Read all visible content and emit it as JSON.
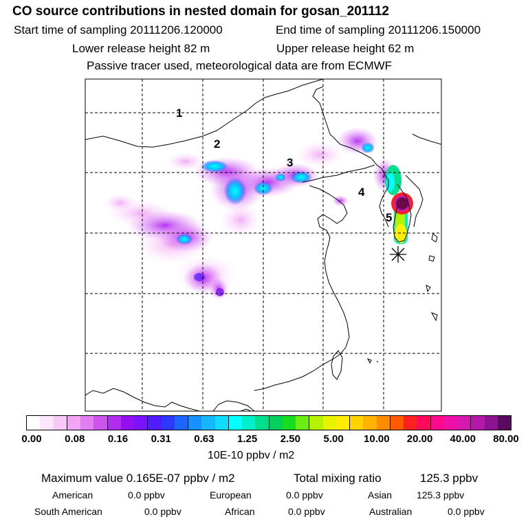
{
  "header": {
    "title": "CO  source contributions in nested domain for gosan_201112",
    "start_label": "Start time of sampling 20111206.120000",
    "end_label": "End time of sampling 20111206.150000",
    "lower_height": "Lower release height   82 m",
    "upper_height": "Upper release height   62 m",
    "tracer_note": "Passive tracer used, meteorological data are from ECMWF"
  },
  "map": {
    "region_labels": [
      "5",
      "4",
      "3",
      "2",
      "1"
    ],
    "receptor_marker": "receptor-star",
    "max_marker_color": "#6a0a4a"
  },
  "colorbar": {
    "ticks": [
      "0.00",
      "0.08",
      "0.16",
      "0.31",
      "0.63",
      "1.25",
      "2.50",
      "5.00",
      "10.00",
      "20.00",
      "40.00",
      "80.00"
    ],
    "unit": "10E-10 ppbv / m2",
    "colors": [
      "#ffffff",
      "#fde6fd",
      "#f8c8f8",
      "#f0a6f4",
      "#e07ef0",
      "#cc55ee",
      "#b22cf2",
      "#9410f0",
      "#7a14ff",
      "#4e1cff",
      "#2c3aff",
      "#1d66ff",
      "#1592ff",
      "#13b8ff",
      "#0fdcff",
      "#00ffff",
      "#00f0cc",
      "#00e08c",
      "#00d05a",
      "#18dc20",
      "#6aee10",
      "#b4f200",
      "#e6f400",
      "#ffee00",
      "#ffd200",
      "#ffb200",
      "#ff8c00",
      "#ff5a00",
      "#ff2020",
      "#ff0a5a",
      "#ff0a8c",
      "#f010a8",
      "#d418b0",
      "#b418a8",
      "#8c1490",
      "#5c0a60"
    ]
  },
  "summary": {
    "max_label": "Maximum value  0.165E-07 ppbv / m2",
    "total_label": "Total mixing ratio",
    "total_value": "125.3 ppbv",
    "american_label": "American",
    "american_value": "0.0 ppbv",
    "european_label": "European",
    "european_value": "0.0 ppbv",
    "asian_label": "Asian",
    "asian_value": "125.3 ppbv",
    "south_american_label": "South American",
    "south_american_value": "0.0 ppbv",
    "african_label": "African",
    "african_value": "0.0 ppbv",
    "australian_label": "Australian",
    "australian_value": "0.0 ppbv"
  }
}
